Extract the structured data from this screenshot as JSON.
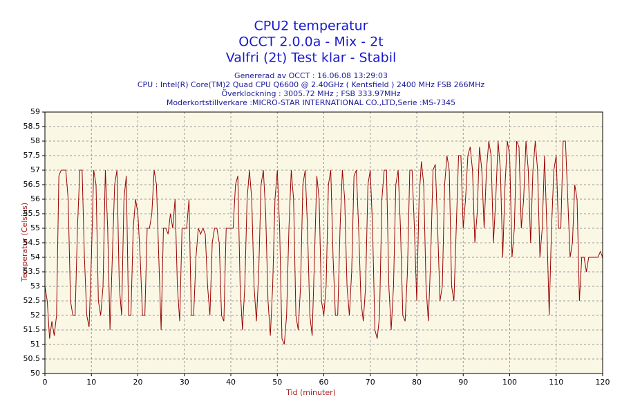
{
  "chart_data": {
    "type": "line",
    "title": [
      "CPU2 temperatur",
      "OCCT 2.0.0a - Mix - 2t",
      "Valfri (2t) Test klar - Stabil"
    ],
    "subtitle": [
      "Genererad av OCCT : 16.06.08 13:29:03",
      "CPU : Intel(R) Core(TM)2 Quad CPU Q6600 @ 2.40GHz ( Kentsfield ) 2400 MHz FSB 266MHz",
      "Överklockning : 3005.72 MHz ; FSB 333.97MHz",
      "Moderkortstillverkare :MICRO-STAR INTERNATIONAL CO.,LTD,Serie :MS-7345"
    ],
    "xlabel": "Tid (minuter)",
    "ylabel": "Temperatur (Celsius)",
    "xlim": [
      0,
      120
    ],
    "xticks": [
      0,
      10,
      20,
      30,
      40,
      50,
      60,
      70,
      80,
      90,
      100,
      110,
      120
    ],
    "ylim": [
      50,
      59
    ],
    "yticks": [
      50,
      50.5,
      51,
      51.5,
      52,
      52.5,
      53,
      53.5,
      54,
      54.5,
      55,
      55.5,
      56,
      56.5,
      57,
      57.5,
      58,
      58.5,
      59
    ],
    "grid": true,
    "x": [
      0,
      0.5,
      1,
      1.5,
      2,
      2.5,
      3,
      3.5,
      4,
      4.5,
      5,
      5.5,
      6,
      6.5,
      7,
      7.5,
      8,
      8.5,
      9,
      9.5,
      10,
      10.5,
      11,
      11.5,
      12,
      12.5,
      13,
      13.5,
      14,
      14.5,
      15,
      15.5,
      16,
      16.5,
      17,
      17.5,
      18,
      18.5,
      19,
      19.5,
      20,
      20.5,
      21,
      21.5,
      22,
      22.5,
      23,
      23.5,
      24,
      24.5,
      25,
      25.5,
      26,
      26.5,
      27,
      27.5,
      28,
      28.5,
      29,
      29.5,
      30,
      30.5,
      31,
      31.5,
      32,
      32.5,
      33,
      33.5,
      34,
      34.5,
      35,
      35.5,
      36,
      36.5,
      37,
      37.5,
      38,
      38.5,
      39,
      39.5,
      40,
      40.5,
      41,
      41.5,
      42,
      42.5,
      43,
      43.5,
      44,
      44.5,
      45,
      45.5,
      46,
      46.5,
      47,
      47.5,
      48,
      48.5,
      49,
      49.5,
      50,
      50.5,
      51,
      51.5,
      52,
      52.5,
      53,
      53.5,
      54,
      54.5,
      55,
      55.5,
      56,
      56.5,
      57,
      57.5,
      58,
      58.5,
      59,
      59.5,
      60,
      60.5,
      61,
      61.5,
      62,
      62.5,
      63,
      63.5,
      64,
      64.5,
      65,
      65.5,
      66,
      66.5,
      67,
      67.5,
      68,
      68.5,
      69,
      69.5,
      70,
      70.5,
      71,
      71.5,
      72,
      72.5,
      73,
      73.5,
      74,
      74.5,
      75,
      75.5,
      76,
      76.5,
      77,
      77.5,
      78,
      78.5,
      79,
      79.5,
      80,
      80.5,
      81,
      81.5,
      82,
      82.5,
      83,
      83.5,
      84,
      84.5,
      85,
      85.5,
      86,
      86.5,
      87,
      87.5,
      88,
      88.5,
      89,
      89.5,
      90,
      90.5,
      91,
      91.5,
      92,
      92.5,
      93,
      93.5,
      94,
      94.5,
      95,
      95.5,
      96,
      96.5,
      97,
      97.5,
      98,
      98.5,
      99,
      99.5,
      100,
      100.5,
      101,
      101.5,
      102,
      102.5,
      103,
      103.5,
      104,
      104.5,
      105,
      105.5,
      106,
      106.5,
      107,
      107.5,
      108,
      108.5,
      109,
      109.5,
      110,
      110.5,
      111,
      111.5,
      112,
      112.5,
      113,
      113.5,
      114,
      114.5,
      115,
      115.5,
      116,
      116.5,
      117,
      117.5,
      118,
      118.5,
      119,
      119.5,
      120
    ],
    "series": [
      {
        "color": "#990000",
        "values": [
          53,
          52.5,
          51.2,
          51.8,
          51.3,
          52,
          56.8,
          57,
          57,
          57,
          56,
          52.5,
          52,
          52,
          55,
          57,
          57,
          54,
          52,
          51.6,
          54,
          57,
          56.5,
          52.5,
          52,
          53,
          57,
          55,
          51.5,
          54,
          56.5,
          57,
          53,
          52,
          56,
          56.8,
          52,
          52,
          55,
          56,
          55.5,
          54,
          52,
          52,
          55,
          55,
          55.5,
          57,
          56.5,
          54,
          51.5,
          55,
          55,
          54.8,
          55.5,
          55,
          56,
          53,
          51.8,
          55,
          55,
          55,
          56,
          52,
          52,
          54,
          55,
          54.8,
          55,
          54.8,
          53,
          52,
          54.5,
          55,
          55,
          54.5,
          52,
          51.8,
          55,
          55,
          55,
          55,
          56.5,
          56.8,
          53,
          51.5,
          53,
          56,
          57,
          56,
          53,
          51.8,
          53.5,
          56.5,
          57,
          55.5,
          52.5,
          51.3,
          53,
          56,
          57,
          55,
          51.2,
          51,
          52,
          55,
          57,
          56,
          52,
          51.5,
          53,
          56.5,
          57,
          55,
          52,
          51.3,
          54,
          56.8,
          56,
          52.5,
          52,
          53,
          56.5,
          57,
          54,
          52,
          52,
          55,
          57,
          56,
          53,
          52,
          53.5,
          56.8,
          57,
          55,
          52.5,
          51.8,
          53,
          56.5,
          57,
          55,
          51.5,
          51.2,
          52,
          56,
          57,
          57,
          53,
          51.5,
          53,
          56.5,
          57,
          55,
          52,
          51.8,
          53.5,
          57,
          57,
          55,
          52.5,
          56,
          57.3,
          56.5,
          53,
          51.8,
          54,
          57,
          57.2,
          55,
          52.5,
          53,
          56.5,
          57.5,
          57,
          53,
          52.5,
          55,
          57.5,
          57.5,
          55,
          56,
          57.5,
          57.8,
          57,
          54.5,
          55.5,
          57.8,
          57,
          55,
          57,
          58,
          57.5,
          54.5,
          56,
          58,
          57,
          54,
          56.5,
          58,
          57.5,
          54,
          55,
          58,
          57.8,
          55,
          56,
          58,
          57,
          54.5,
          57,
          58,
          57,
          54,
          55,
          57.5,
          55,
          52,
          55,
          57,
          57.5,
          55,
          55,
          58,
          58,
          56,
          54,
          54.5,
          56.5,
          56,
          52.5,
          54,
          54,
          53.5,
          54,
          54,
          54,
          54,
          54,
          54.2,
          54
        ]
      }
    ]
  }
}
